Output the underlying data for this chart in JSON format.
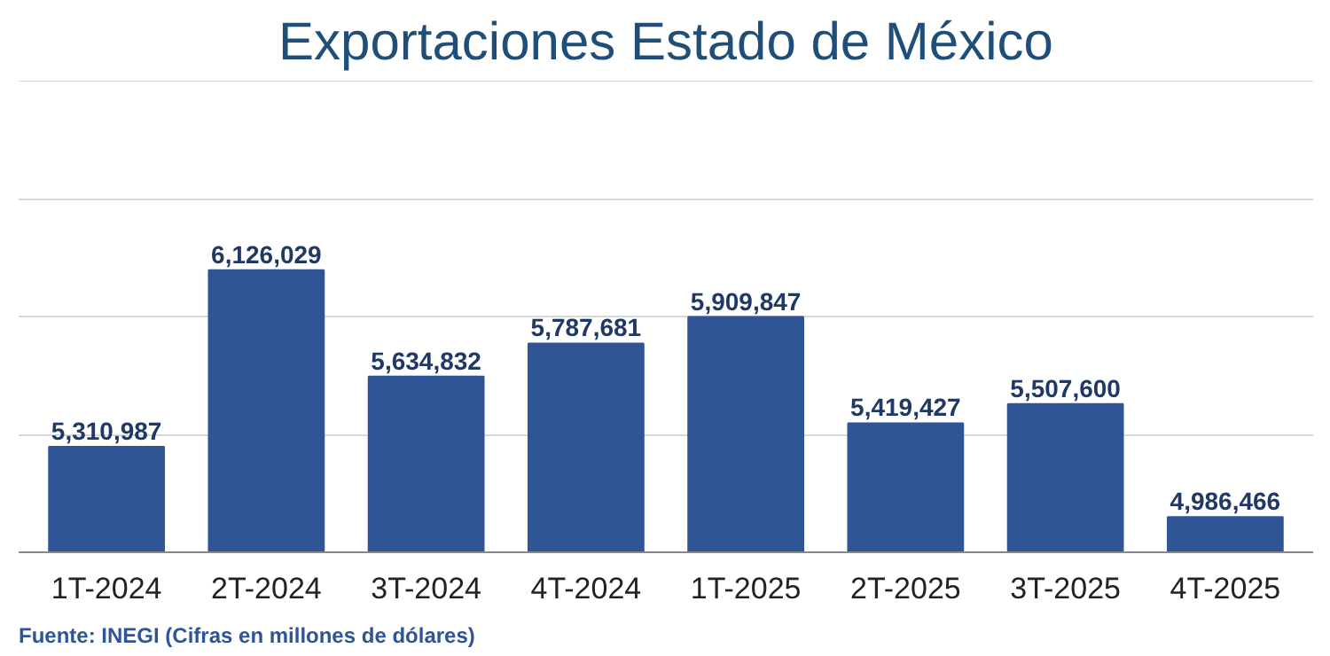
{
  "chart_data": {
    "type": "bar",
    "title": "Exportaciones Estado de México",
    "categories": [
      "1T-2024",
      "2T-2024",
      "3T-2024",
      "4T-2024",
      "1T-2025",
      "2T-2025",
      "3T-2025",
      "4T-2025"
    ],
    "values": [
      5310987,
      6126029,
      5634832,
      5787681,
      5909847,
      5419427,
      5507600,
      4986466
    ],
    "value_labels": [
      "5,310,987",
      "6,126,029",
      "5,634,832",
      "5,787,681",
      "5,909,847",
      "5,419,427",
      "5,507,600",
      "4,986,466"
    ],
    "color": "#2f5597",
    "ylim": [
      4824000,
      7000000
    ],
    "yticks": [
      {
        "value": 4824000,
        "label": null
      },
      {
        "value": 5367000,
        "label": null
      },
      {
        "value": 5910000,
        "label": null
      },
      {
        "value": 6453000,
        "label": null
      },
      {
        "value": 6996000,
        "label": null
      }
    ],
    "grid": "y",
    "tick_labels": "x",
    "annotations": [
      "Fuente: INEGI (Cifras en millones de dólares)"
    ]
  }
}
